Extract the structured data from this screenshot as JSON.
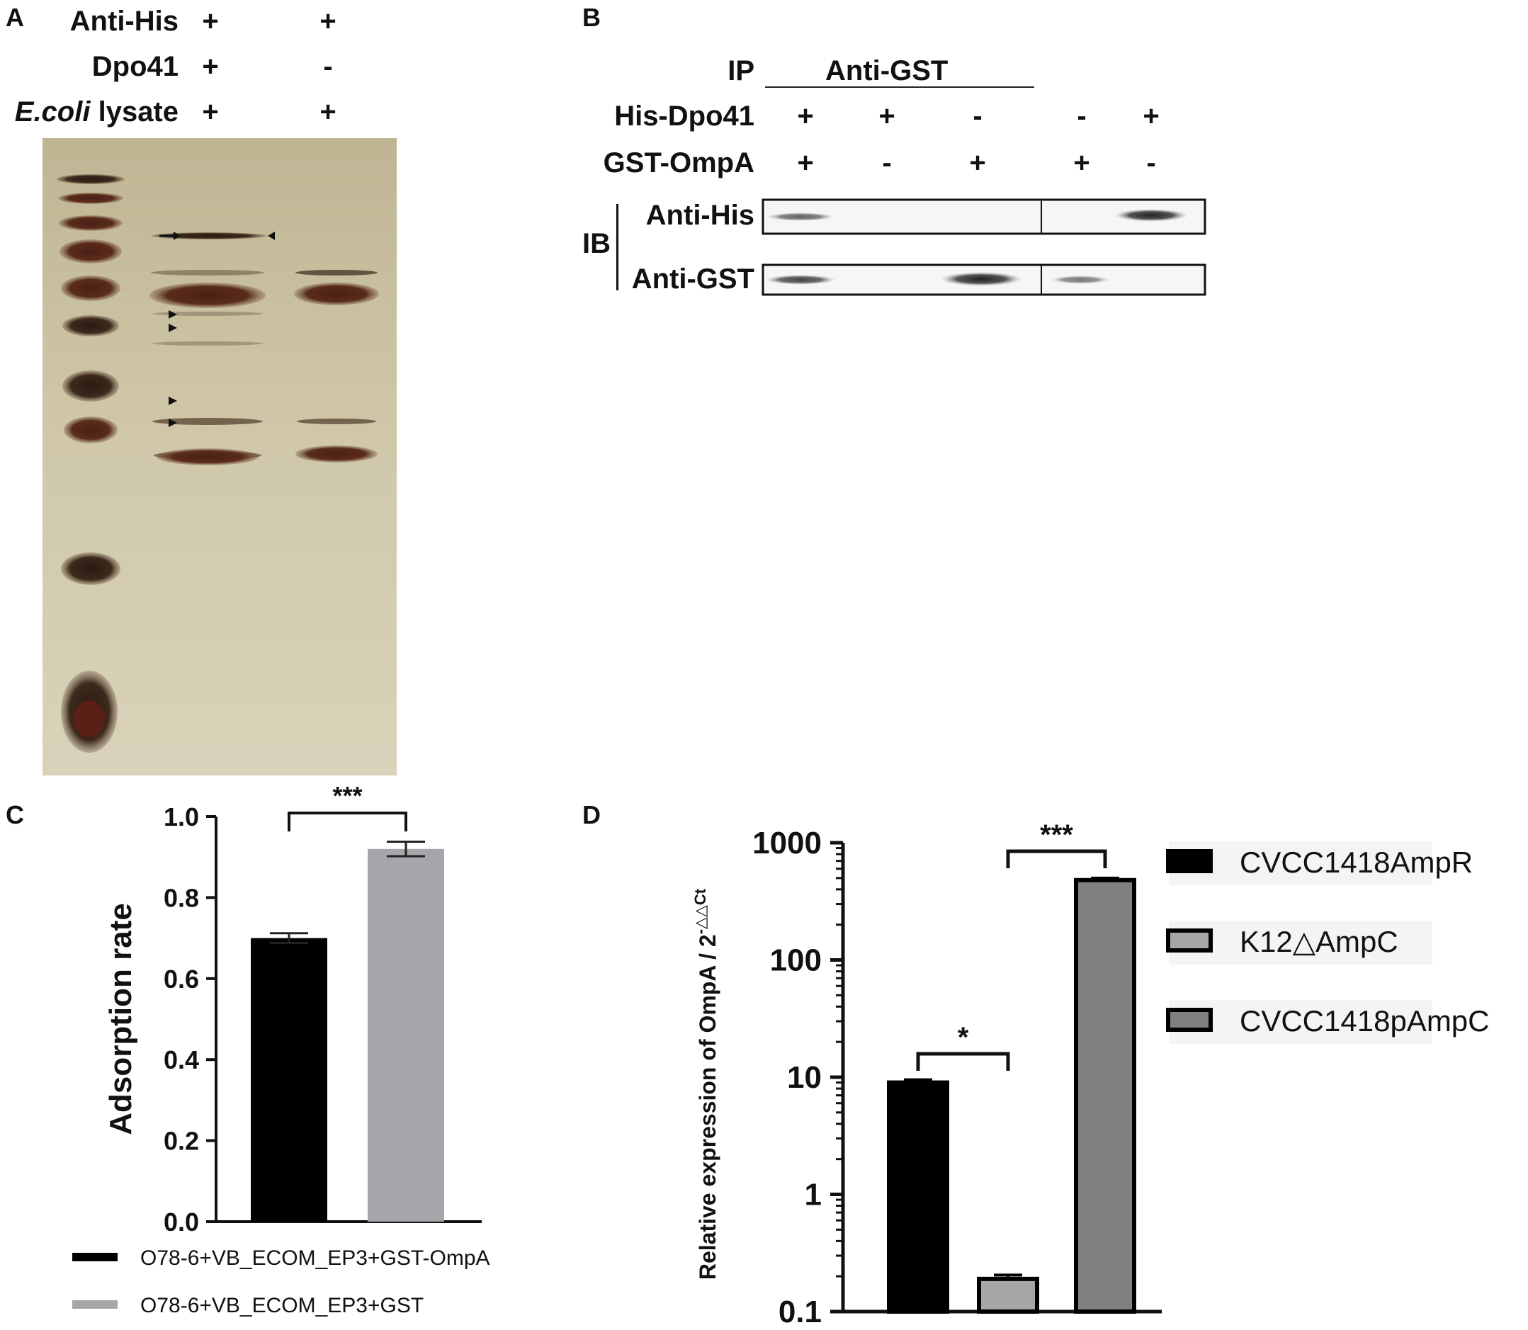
{
  "panels": {
    "A": {
      "letter": "A",
      "rows": [
        {
          "label": "Anti-His",
          "signs": [
            "+",
            "+"
          ]
        },
        {
          "label": "Dpo41",
          "signs": [
            "+",
            "-"
          ]
        },
        {
          "label_italic": "E.coli",
          "label_rest": " lysate",
          "signs": [
            "+",
            "+"
          ]
        }
      ]
    },
    "B": {
      "letter": "B",
      "ip_label": "IP",
      "ip_antibody": "Anti-GST",
      "rows": [
        {
          "label": "His-Dpo41",
          "signs": [
            "+",
            "+",
            "-",
            "-",
            "+"
          ]
        },
        {
          "label": "GST-OmpA",
          "signs": [
            "+",
            "-",
            "+",
            "+",
            "-"
          ]
        }
      ],
      "ib_label": "IB",
      "blots": [
        "Anti-His",
        "Anti-GST"
      ]
    },
    "C": {
      "letter": "C"
    },
    "D": {
      "letter": "D"
    }
  },
  "chart_data": [
    {
      "panel": "C",
      "type": "bar",
      "ylabel": "Adsorption rate",
      "ylim": [
        0,
        1.0
      ],
      "yticks": [
        "0.0",
        "0.2",
        "0.4",
        "0.6",
        "0.8",
        "1.0"
      ],
      "categories": [
        "O78-6+VB_ECOM_EP3+GST-OmpA",
        "O78-6+VB_ECOM_EP3+GST"
      ],
      "values": [
        0.7,
        0.92
      ],
      "errors": [
        0.012,
        0.018
      ],
      "colors": [
        "#000000",
        "#a6a6aa"
      ],
      "significance": [
        {
          "between": [
            0,
            1
          ],
          "label": "***"
        }
      ],
      "legend": {
        "placement": "bottom",
        "entries": [
          "O78-6+VB_ECOM_EP3+GST-OmpA",
          "O78-6+VB_ECOM_EP3+GST"
        ]
      }
    },
    {
      "panel": "D",
      "type": "bar",
      "yscale": "log",
      "ylabel": "Relative expression of OmpA / 2",
      "ylabel_superscript": "-△△Ct",
      "ylim": [
        0.1,
        1000
      ],
      "yticks": [
        "0.1",
        "1",
        "10",
        "100",
        "1000"
      ],
      "categories": [
        "CVCC1418AmpR",
        "K12△AmpC",
        "CVCC1418pAmpC"
      ],
      "values": [
        9.0,
        0.19,
        480
      ],
      "errors": [
        0.5,
        0.015,
        20
      ],
      "colors": [
        "#000000",
        "#a6a6a6",
        "#808080"
      ],
      "significance": [
        {
          "between": [
            0,
            1
          ],
          "label": "*"
        },
        {
          "between": [
            1,
            2
          ],
          "label": "***"
        }
      ],
      "legend": {
        "placement": "right",
        "entries": [
          "CVCC1418AmpR",
          "K12△AmpC",
          "CVCC1418pAmpC"
        ]
      }
    }
  ]
}
